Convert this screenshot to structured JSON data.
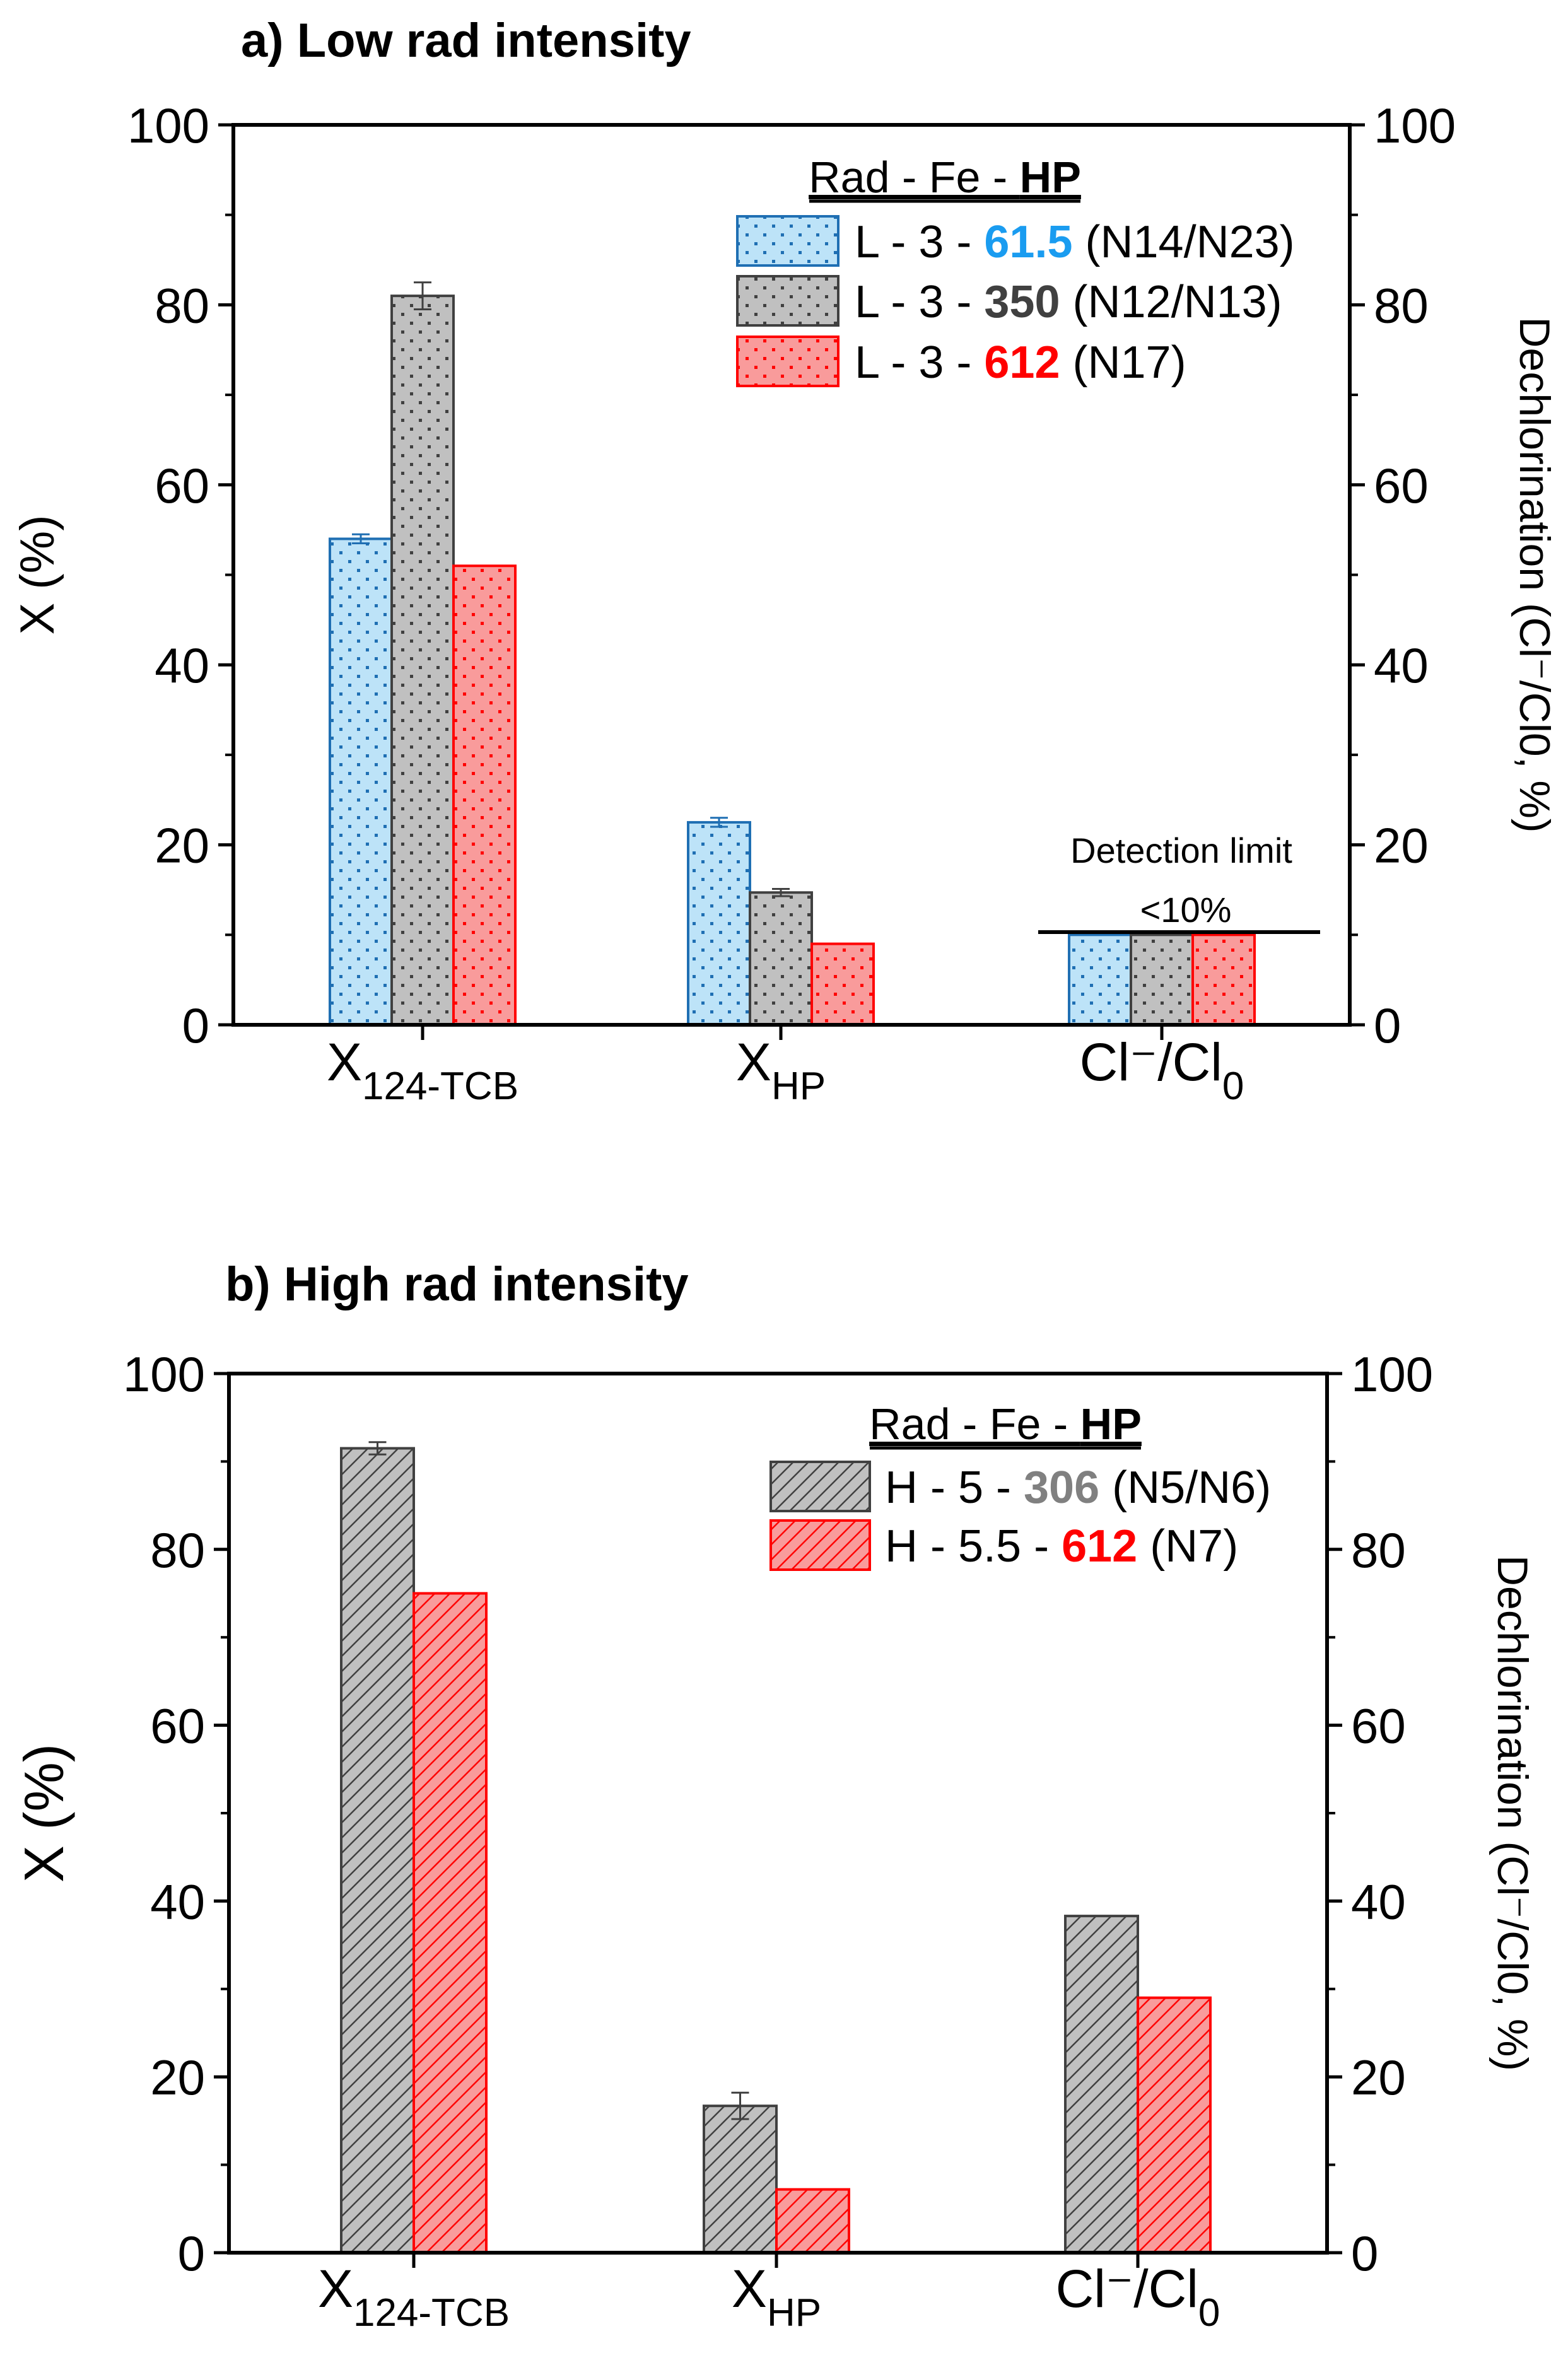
{
  "chart_data": [
    {
      "type": "bar",
      "title": "a) Low rad intensity",
      "ylabel": "X (%)",
      "ylabel_right": "Dechlorination (Cl⁻/Cl0, %)",
      "ylim": [
        0,
        100
      ],
      "yticks": [
        "0",
        "20",
        "40",
        "60",
        "80",
        "100"
      ],
      "categories": [
        {
          "main": "X",
          "sub": "124-TCB"
        },
        {
          "main": "X",
          "sub": "HP"
        },
        {
          "main": "Cl⁻/Cl",
          "sub": "0"
        }
      ],
      "legend_title": {
        "plain": "Rad - Fe - ",
        "bold": "HP"
      },
      "legend_placement": "top-right",
      "series": [
        {
          "prefix": "L - 3 - ",
          "hp": "61.5",
          "suffix": " (N14/N23)",
          "values": [
            54,
            22.5,
            10
          ],
          "errors": [
            0.5,
            0.5,
            0
          ],
          "fill": "#bde3f8",
          "stroke": "#1f6fb3",
          "hp_color": "#1a9cf0",
          "pattern": "dots"
        },
        {
          "prefix": "L - 3 - ",
          "hp": "350",
          "suffix": " (N12/N13)",
          "values": [
            81,
            14.7,
            10
          ],
          "errors": [
            1.5,
            0.4,
            0
          ],
          "fill": "#c0c0c0",
          "stroke": "#404040",
          "hp_color": "#404040",
          "pattern": "dots"
        },
        {
          "prefix": "L - 3 - ",
          "hp": "612",
          "suffix": " (N17)",
          "values": [
            51,
            9,
            10
          ],
          "errors": [
            0,
            0,
            0
          ],
          "fill": "#f99b9b",
          "stroke": "#ff0000",
          "hp_color": "#ff0000",
          "pattern": "dots"
        }
      ],
      "annotation": {
        "label": "Detection limit",
        "value_label": "<10%",
        "value": 10.3
      }
    },
    {
      "type": "bar",
      "title": "b) High rad intensity",
      "ylabel": "X (%)",
      "ylabel_right": "Dechlorination (Cl⁻/Cl0, %)",
      "ylim": [
        0,
        100
      ],
      "yticks": [
        "0",
        "20",
        "40",
        "60",
        "80",
        "100"
      ],
      "categories": [
        {
          "main": "X",
          "sub": "124-TCB"
        },
        {
          "main": "X",
          "sub": "HP"
        },
        {
          "main": "Cl⁻/Cl",
          "sub": "0"
        }
      ],
      "legend_title": {
        "plain": "Rad - Fe - ",
        "bold": "HP"
      },
      "legend_placement": "top-right",
      "series": [
        {
          "prefix": "H - 5 - ",
          "hp": "306",
          "suffix": "   (N5/N6)",
          "values": [
            91.5,
            16.7,
            38.3
          ],
          "errors": [
            0.7,
            1.5,
            0
          ],
          "fill": "#c0c0c0",
          "stroke": "#404040",
          "hp_color": "#808080",
          "pattern": "hatch"
        },
        {
          "prefix": "H - 5.5 - ",
          "hp": "612",
          "suffix": " (N7)",
          "values": [
            75,
            7.2,
            29
          ],
          "errors": [
            0,
            0,
            0
          ],
          "fill": "#f99b9b",
          "stroke": "#ff0000",
          "hp_color": "#ff0000",
          "pattern": "hatch"
        }
      ]
    }
  ]
}
